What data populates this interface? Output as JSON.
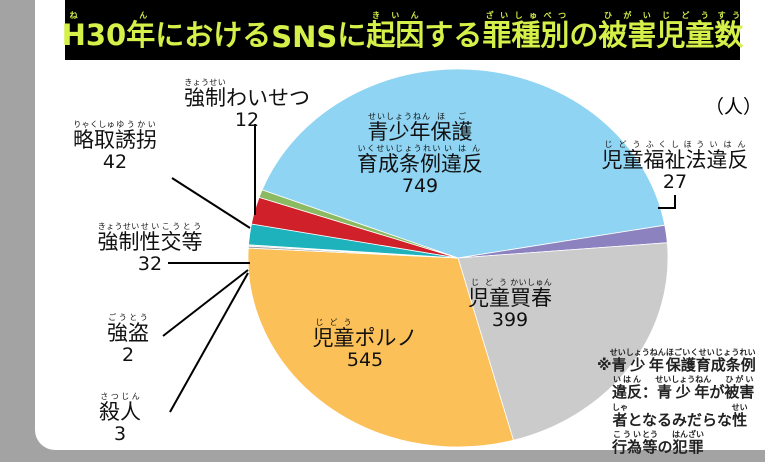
{
  "chart_data": {
    "type": "pie",
    "title": [
      {
        "b": "H30年",
        "r": "ねん"
      },
      {
        "b": "における"
      },
      {
        "b": "SNS"
      },
      {
        "b": "に"
      },
      {
        "b": "起因",
        "r": "きいん"
      },
      {
        "b": "する"
      },
      {
        "b": "罪種別",
        "r": "ざいしゅべつ"
      },
      {
        "b": "の"
      },
      {
        "b": "被害",
        "r": "ひがい"
      },
      {
        "b": "児童",
        "r": "じどう"
      },
      {
        "b": "数",
        "r": "すう"
      }
    ],
    "unit": "（人）",
    "slices": [
      {
        "name": [
          [
            {
              "b": "青少年",
              "r": "せいしょうねん"
            },
            {
              "b": "保護",
              "r": "ほご"
            }
          ],
          [
            {
              "b": "育成条例",
              "r": "いくせいじょうれい"
            },
            {
              "b": "違反",
              "r": "いはん"
            }
          ]
        ],
        "value": 749,
        "color": "#8fd4f2"
      },
      {
        "name": [
          [
            {
              "b": "児童",
              "r": "じどう"
            },
            {
              "b": "福祉法",
              "r": "ふくしほう"
            },
            {
              "b": "違反",
              "r": "いはん"
            }
          ]
        ],
        "value": 27,
        "color": "#8c82c0"
      },
      {
        "name": [
          [
            {
              "b": "児童",
              "r": "じどう"
            },
            {
              "b": "買春",
              "r": "かいしゅん"
            }
          ]
        ],
        "value": 399,
        "color": "#cbcbcb"
      },
      {
        "name": [
          [
            {
              "b": "児童",
              "r": "じどう"
            },
            {
              "b": "ポルノ"
            }
          ]
        ],
        "value": 545,
        "color": "#fcc058"
      },
      {
        "name": [
          [
            {
              "b": "殺人",
              "r": "さつじん"
            }
          ]
        ],
        "value": 3,
        "color": "#9aa0a6"
      },
      {
        "name": [
          [
            {
              "b": "強盗",
              "r": "ごうとう"
            }
          ]
        ],
        "value": 2,
        "color": "#dcdcdc"
      },
      {
        "name": [
          [
            {
              "b": "強制",
              "r": "きょうせい"
            },
            {
              "b": "性交等",
              "r": "せいこうとう"
            }
          ]
        ],
        "value": 32,
        "color": "#1eb2bc"
      },
      {
        "name": [
          [
            {
              "b": "略取",
              "r": "りゃくしゅ"
            },
            {
              "b": "誘拐",
              "r": "ゆうかい"
            }
          ]
        ],
        "value": 42,
        "color": "#d0202a"
      },
      {
        "name": [
          [
            {
              "b": "強制",
              "r": "きょうせい"
            },
            {
              "b": "わいせつ"
            }
          ]
        ],
        "value": 12,
        "color": "#8cba62"
      }
    ],
    "note": [
      [
        {
          "b": "※"
        },
        {
          "b": "青少年",
          "r": "せいしょうねん"
        },
        {
          "b": "保護育成条例",
          "r": "ほごいくせいじょうれい"
        }
      ],
      [
        {
          "b": "違反",
          "r": "いはん"
        },
        {
          "b": "：",
          "r": ""
        },
        {
          "b": "青少年",
          "r": "せいしょうねん"
        },
        {
          "b": "が"
        },
        {
          "b": "被害",
          "r": "ひがい"
        }
      ],
      [
        {
          "b": "者",
          "r": "しゃ"
        },
        {
          "b": "となるみだらな"
        },
        {
          "b": "性",
          "r": "せい"
        }
      ],
      [
        {
          "b": "行為",
          "r": "こうい"
        },
        {
          "b": "等",
          "r": "とう"
        },
        {
          "b": "の"
        },
        {
          "b": "犯罪",
          "r": "はんざい"
        }
      ]
    ]
  }
}
